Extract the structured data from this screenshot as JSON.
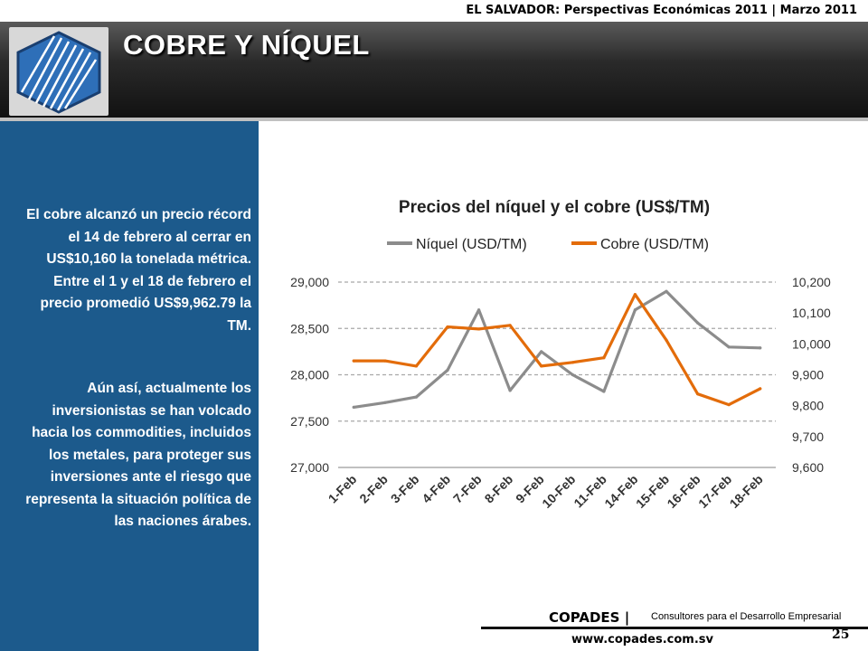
{
  "header": {
    "top_title": "EL SALVADOR: Perspectivas Económicas 2011  |  Marzo 2011",
    "slide_title": "COBRE Y NÍQUEL"
  },
  "sidebar": {
    "paragraph_1": "El cobre alcanzó un precio récord el 14 de febrero al cerrar en US$10,160 la tonelada métrica. Entre el 1 y el 18 de febrero el precio promedió US$9,962.79 la TM.",
    "paragraph_2": "Aún así, actualmente los inversionistas se han volcado hacia los commodities, incluidos los metales, para proteger sus inversiones ante el riesgo que representa la situación política de las naciones árabes."
  },
  "footer": {
    "company": "COPADES |",
    "tagline": "Consultores para el Desarrollo Empresarial",
    "website": "www.copades.com.sv",
    "page_number": "25"
  },
  "chart_data": {
    "type": "line",
    "title": "Precios del níquel y el cobre (US$/TM)",
    "categories": [
      "1-Feb",
      "2-Feb",
      "3-Feb",
      "4-Feb",
      "7-Feb",
      "8-Feb",
      "9-Feb",
      "10-Feb",
      "11-Feb",
      "14-Feb",
      "15-Feb",
      "16-Feb",
      "17-Feb",
      "18-Feb"
    ],
    "series": [
      {
        "name": "Níquel (USD/TM)",
        "axis": "left",
        "color": "#8c8c8c",
        "values": [
          27650,
          27700,
          27760,
          28050,
          28700,
          27830,
          28250,
          28000,
          27820,
          28700,
          28900,
          28560,
          28300,
          28290
        ]
      },
      {
        "name": "Cobre (USD/TM)",
        "axis": "right",
        "color": "#e36c0a",
        "values": [
          9945,
          9945,
          9928,
          10055,
          10048,
          10060,
          9928,
          9940,
          9955,
          10160,
          10012,
          9838,
          9803,
          9855
        ]
      }
    ],
    "y_left": {
      "min": 27000,
      "max": 29000,
      "ticks": [
        "27,000",
        "27,500",
        "28,000",
        "28,500",
        "29,000"
      ]
    },
    "y_right": {
      "min": 9600,
      "max": 10200,
      "ticks": [
        "9,600",
        "9,700",
        "9,800",
        "9,900",
        "10,000",
        "10,100",
        "10,200"
      ]
    },
    "grid": true,
    "legend_position": "top"
  }
}
